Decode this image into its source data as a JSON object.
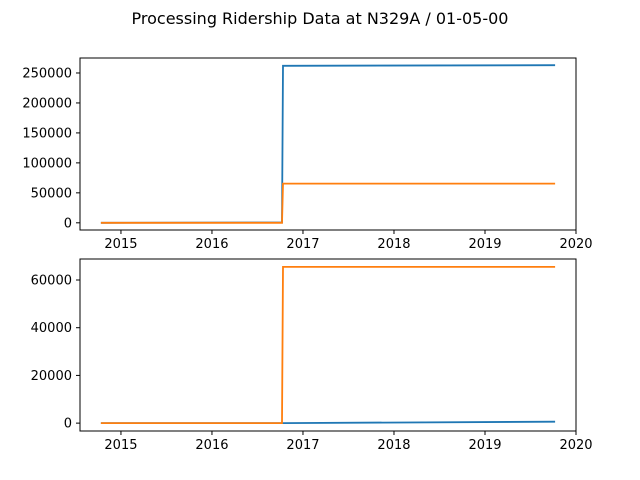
{
  "figure": {
    "title": "Processing Ridership Data at N329A / 01-05-00"
  },
  "chart_data": [
    {
      "type": "line",
      "title": "",
      "xlabel": "",
      "ylabel": "",
      "x_ticks": [
        "2015",
        "2016",
        "2017",
        "2018",
        "2019",
        "2020"
      ],
      "x_tick_values": [
        2015.0,
        2016.0,
        2017.0,
        2018.0,
        2019.0,
        2020.0
      ],
      "y_ticks": [
        "0",
        "50000",
        "100000",
        "150000",
        "200000",
        "250000"
      ],
      "y_tick_values": [
        0,
        50000,
        100000,
        150000,
        200000,
        250000
      ],
      "xlim": [
        2014.55,
        2020.0
      ],
      "ylim": [
        -12000,
        275000
      ],
      "grid": false,
      "series": [
        {
          "color": "#1f77b4",
          "points": [
            {
              "x": 2014.78,
              "y": 0
            },
            {
              "x": 2016.77,
              "y": 500
            },
            {
              "x": 2016.78,
              "y": 262000
            },
            {
              "x": 2019.77,
              "y": 263000
            }
          ]
        },
        {
          "color": "#ff7f0e",
          "points": [
            {
              "x": 2014.78,
              "y": 0
            },
            {
              "x": 2016.77,
              "y": 0
            },
            {
              "x": 2016.78,
              "y": 65500
            },
            {
              "x": 2019.77,
              "y": 65500
            }
          ]
        }
      ]
    },
    {
      "type": "line",
      "title": "",
      "xlabel": "",
      "ylabel": "",
      "x_ticks": [
        "2015",
        "2016",
        "2017",
        "2018",
        "2019",
        "2020"
      ],
      "x_tick_values": [
        2015.0,
        2016.0,
        2017.0,
        2018.0,
        2019.0,
        2020.0
      ],
      "y_ticks": [
        "0",
        "20000",
        "40000",
        "60000"
      ],
      "y_tick_values": [
        0,
        20000,
        40000,
        60000
      ],
      "xlim": [
        2014.55,
        2020.0
      ],
      "ylim": [
        -3300,
        68800
      ],
      "grid": false,
      "series": [
        {
          "color": "#1f77b4",
          "points": [
            {
              "x": 2014.78,
              "y": 0
            },
            {
              "x": 2016.77,
              "y": 0
            },
            {
              "x": 2019.77,
              "y": 600
            }
          ]
        },
        {
          "color": "#ff7f0e",
          "points": [
            {
              "x": 2014.78,
              "y": 0
            },
            {
              "x": 2016.77,
              "y": 0
            },
            {
              "x": 2016.78,
              "y": 65500
            },
            {
              "x": 2019.77,
              "y": 65500
            }
          ]
        }
      ]
    }
  ]
}
